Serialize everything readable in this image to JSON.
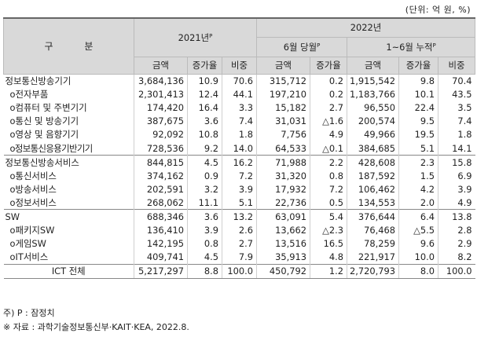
{
  "unit_note": "(단위: 억 원, %)",
  "header": {
    "category": "구 분",
    "year2021": "2021년",
    "year2021_sup": "P",
    "year2022": "2022년",
    "june": "6월 당월",
    "june_sup": "P",
    "ytd": "1~6월 누적",
    "ytd_sup": "P",
    "col_amount": "금액",
    "col_growth": "증가율",
    "col_share": "비중"
  },
  "rows": [
    {
      "label": "정보통신방송기기",
      "v": [
        "3,684,136",
        "10.9",
        "70.6",
        "315,712",
        "0.2",
        "1,915,542",
        "9.8",
        "70.4"
      ]
    },
    {
      "label": "o전자부품",
      "v": [
        "2,301,413",
        "12.4",
        "44.1",
        "197,210",
        "0.2",
        "1,183,766",
        "10.1",
        "43.5"
      ]
    },
    {
      "label": "o컴퓨터 및 주변기기",
      "v": [
        "174,420",
        "16.4",
        "3.3",
        "15,182",
        "2.7",
        "96,550",
        "22.4",
        "3.5"
      ]
    },
    {
      "label": "o통신 및 방송기기",
      "v": [
        "387,675",
        "3.6",
        "7.4",
        "31,031",
        "△1.6",
        "200,574",
        "9.5",
        "7.4"
      ]
    },
    {
      "label": "o영상 및 음향기기",
      "v": [
        "92,092",
        "10.8",
        "1.8",
        "7,756",
        "4.9",
        "49,966",
        "19.5",
        "1.8"
      ]
    },
    {
      "label": "o정보통신응용기반기기",
      "v": [
        "728,536",
        "9.2",
        "14.0",
        "64,533",
        "△0.1",
        "384,685",
        "5.1",
        "14.1"
      ]
    },
    {
      "label": "정보통신방송서비스",
      "v": [
        "844,815",
        "4.5",
        "16.2",
        "71,988",
        "2.2",
        "428,608",
        "2.3",
        "15.8"
      ]
    },
    {
      "label": "o통신서비스",
      "v": [
        "374,162",
        "0.9",
        "7.2",
        "31,320",
        "0.8",
        "187,592",
        "1.5",
        "6.9"
      ]
    },
    {
      "label": "o방송서비스",
      "v": [
        "202,591",
        "3.2",
        "3.9",
        "17,932",
        "7.2",
        "106,462",
        "4.2",
        "3.9"
      ]
    },
    {
      "label": "o정보서비스",
      "v": [
        "268,062",
        "11.1",
        "5.1",
        "22,736",
        "0.5",
        "134,553",
        "2.0",
        "4.9"
      ]
    },
    {
      "label": "SW",
      "v": [
        "688,346",
        "3.6",
        "13.2",
        "63,091",
        "5.4",
        "376,644",
        "6.4",
        "13.8"
      ]
    },
    {
      "label": "o패키지SW",
      "v": [
        "136,410",
        "3.9",
        "2.6",
        "13,662",
        "△2.3",
        "76,468",
        "△5.5",
        "2.8"
      ]
    },
    {
      "label": "o게임SW",
      "v": [
        "142,195",
        "0.8",
        "2.7",
        "13,516",
        "16.5",
        "78,259",
        "9.6",
        "2.9"
      ]
    },
    {
      "label": "oIT서비스",
      "v": [
        "409,741",
        "4.5",
        "7.9",
        "35,913",
        "4.8",
        "221,917",
        "10.0",
        "8.2"
      ]
    },
    {
      "label": "ICT 전체",
      "v": [
        "5,217,297",
        "8.8",
        "100.0",
        "450,792",
        "1.2",
        "2,720,793",
        "8.0",
        "100.0"
      ]
    }
  ],
  "notes": {
    "note1": "주) P : 잠정치",
    "note2": "※ 자료 : 과학기술정보통신부·KAIT·KEA, 2022.8."
  }
}
